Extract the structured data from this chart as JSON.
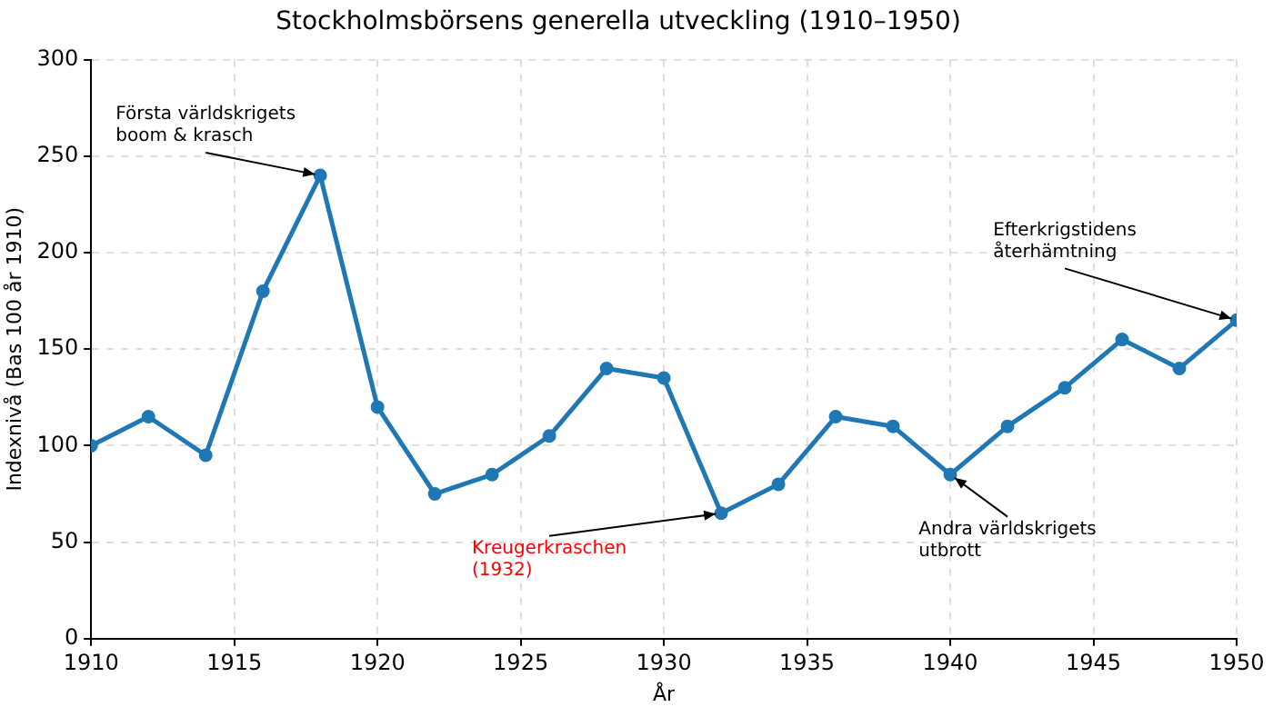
{
  "chart_data": {
    "type": "line",
    "title": "Stockholmsbörsens generella utveckling (1910–1950)",
    "xlabel": "År",
    "ylabel": "Indexnivå (Bas 100 år 1910)",
    "x": [
      1910,
      1912,
      1914,
      1916,
      1918,
      1920,
      1922,
      1924,
      1926,
      1928,
      1930,
      1932,
      1934,
      1936,
      1938,
      1940,
      1942,
      1944,
      1946,
      1948,
      1950
    ],
    "series": [
      {
        "color": "#1f77b4",
        "values": [
          100,
          115,
          95,
          180,
          240,
          120,
          75,
          85,
          105,
          140,
          135,
          65,
          80,
          115,
          110,
          85,
          110,
          130,
          155,
          140,
          165
        ]
      }
    ],
    "xlim": [
      1910,
      1950
    ],
    "xticks": [
      1910,
      1915,
      1920,
      1925,
      1930,
      1935,
      1940,
      1945,
      1950
    ],
    "ylim": [
      0,
      300
    ],
    "yticks": [
      0,
      50,
      100,
      150,
      200,
      250,
      300
    ],
    "grid": true,
    "legend": false,
    "marker": "circle",
    "line_style": "solid",
    "annotations": [
      {
        "text": "Första världskrigets\nboom & krasch",
        "x": 1918,
        "y": 240
      },
      {
        "text": "Kreugerkraschen\n(1932)",
        "x": 1932,
        "y": 65
      },
      {
        "text": "Andra världskrigets\nutbrott",
        "x": 1940,
        "y": 85
      },
      {
        "text": "Efterkrigstidens\nåterhämtning",
        "x": 1950,
        "y": 165
      }
    ]
  }
}
